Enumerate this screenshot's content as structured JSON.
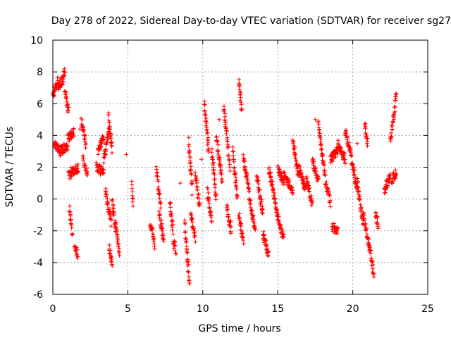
{
  "chart_data": {
    "type": "scatter",
    "title": "Day 278 of 2022, Sidereal Day-to-day VTEC variation (SDTVAR) for receiver sg27",
    "xlabel": "GPS time / hours",
    "ylabel": "SDTVAR / TECUs",
    "xlim": [
      0,
      25
    ],
    "ylim": [
      -6,
      10
    ],
    "xticks": [
      0,
      5,
      10,
      15,
      20,
      25
    ],
    "yticks": [
      -6,
      -4,
      -2,
      0,
      2,
      4,
      6,
      8,
      10
    ],
    "grid": true,
    "marker": "+",
    "color": "#ff0000",
    "series": [
      {
        "name": "sg27",
        "segments": [
          [
            0.0,
            0.05,
            6.2,
            6.6
          ],
          [
            0.05,
            0.35,
            6.6,
            7.5
          ],
          [
            0.35,
            0.65,
            7.0,
            7.6
          ],
          [
            0.65,
            0.8,
            7.4,
            8.2
          ],
          [
            0.8,
            1.05,
            7.0,
            5.5
          ],
          [
            0.08,
            0.5,
            3.6,
            3.0
          ],
          [
            0.5,
            1.0,
            3.0,
            3.4
          ],
          [
            1.0,
            1.4,
            3.8,
            4.2
          ],
          [
            1.05,
            1.2,
            1.5,
            1.4
          ],
          [
            1.2,
            1.7,
            1.7,
            1.9
          ],
          [
            1.1,
            1.3,
            -0.6,
            -2.2
          ],
          [
            1.45,
            1.65,
            -2.8,
            -3.6
          ],
          [
            1.9,
            2.2,
            5.0,
            3.5
          ],
          [
            2.0,
            2.3,
            2.5,
            1.5
          ],
          [
            2.9,
            3.4,
            2.0,
            1.7
          ],
          [
            3.0,
            3.4,
            3.0,
            4.0
          ],
          [
            3.4,
            3.8,
            2.5,
            4.5
          ],
          [
            3.7,
            3.95,
            5.3,
            3.0
          ],
          [
            3.5,
            3.9,
            0.5,
            -1.5
          ],
          [
            3.75,
            3.95,
            -3.0,
            -4.2
          ],
          [
            3.95,
            4.2,
            0.0,
            -2.0
          ],
          [
            4.2,
            4.45,
            -1.6,
            -3.5
          ],
          [
            5.25,
            5.35,
            0.9,
            -0.2
          ],
          [
            6.5,
            6.8,
            -1.5,
            -3.0
          ],
          [
            6.9,
            7.2,
            1.9,
            -0.5
          ],
          [
            7.1,
            7.4,
            -1.0,
            -2.5
          ],
          [
            7.8,
            8.0,
            -0.2,
            -1.8
          ],
          [
            8.0,
            8.2,
            -2.5,
            -3.2
          ],
          [
            8.8,
            9.1,
            -1.5,
            -5.4
          ],
          [
            9.05,
            9.3,
            3.6,
            0.5
          ],
          [
            9.2,
            9.5,
            -1.0,
            -2.5
          ],
          [
            9.5,
            9.8,
            1.5,
            -0.5
          ],
          [
            10.1,
            10.4,
            6.0,
            3.0
          ],
          [
            10.3,
            10.6,
            0.5,
            -1.5
          ],
          [
            10.6,
            10.9,
            3.0,
            0.0
          ],
          [
            10.9,
            11.3,
            4.0,
            1.0
          ],
          [
            11.4,
            11.8,
            5.8,
            2.0
          ],
          [
            11.6,
            11.9,
            -0.5,
            -2.0
          ],
          [
            12.0,
            12.3,
            3.0,
            0.0
          ],
          [
            12.4,
            12.6,
            7.4,
            5.6
          ],
          [
            12.4,
            12.7,
            -1.0,
            -2.6
          ],
          [
            12.7,
            13.1,
            2.5,
            0.5
          ],
          [
            13.1,
            13.5,
            0.0,
            -2.0
          ],
          [
            13.6,
            14.0,
            1.5,
            -1.0
          ],
          [
            14.0,
            14.4,
            -2.2,
            -3.5
          ],
          [
            14.4,
            14.8,
            2.0,
            0.0
          ],
          [
            14.8,
            15.4,
            -0.2,
            -2.6
          ],
          [
            15.0,
            15.4,
            2.0,
            1.0
          ],
          [
            15.4,
            16.0,
            1.5,
            0.5
          ],
          [
            16.0,
            16.4,
            3.6,
            1.5
          ],
          [
            16.4,
            16.9,
            2.0,
            0.5
          ],
          [
            16.9,
            17.3,
            1.5,
            -0.5
          ],
          [
            17.3,
            17.7,
            2.5,
            1.0
          ],
          [
            17.7,
            18.1,
            4.8,
            2.0
          ],
          [
            18.1,
            18.5,
            1.5,
            -0.2
          ],
          [
            18.6,
            19.0,
            -1.7,
            -2.1
          ],
          [
            18.5,
            19.0,
            2.5,
            3.0
          ],
          [
            19.0,
            19.5,
            3.5,
            2.5
          ],
          [
            19.5,
            19.9,
            4.3,
            2.8
          ],
          [
            19.9,
            20.3,
            2.5,
            0.5
          ],
          [
            20.3,
            20.7,
            1.0,
            -1.5
          ],
          [
            20.7,
            21.1,
            -1.0,
            -3.0
          ],
          [
            21.1,
            21.4,
            -3.0,
            -4.7
          ],
          [
            20.8,
            21.0,
            4.7,
            3.5
          ],
          [
            21.5,
            21.7,
            -1.0,
            -1.6
          ],
          [
            22.1,
            22.5,
            0.5,
            1.5
          ],
          [
            22.5,
            22.9,
            3.5,
            6.5
          ],
          [
            22.6,
            22.9,
            1.2,
            1.7
          ]
        ],
        "points": [
          [
            1.8,
            4.4
          ],
          [
            4.9,
            2.8
          ],
          [
            8.5,
            1.0
          ],
          [
            9.9,
            2.5
          ],
          [
            11.1,
            5.0
          ],
          [
            17.5,
            5.0
          ],
          [
            20.3,
            3.5
          ]
        ]
      }
    ]
  }
}
